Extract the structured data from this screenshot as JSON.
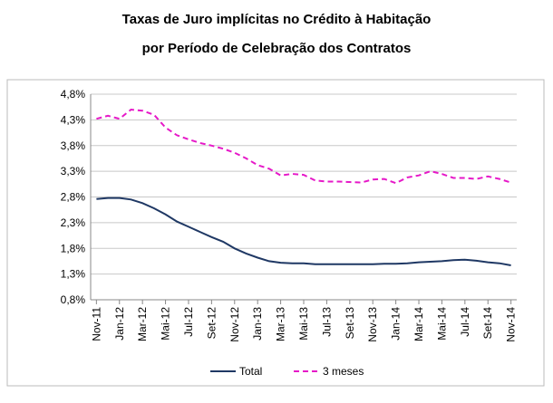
{
  "chart_data": {
    "type": "line",
    "title": "Taxas de Juro implícitas no Crédito à Habitação",
    "subtitle": "por Período de Celebração dos Contratos",
    "categories": [
      "Nov-11",
      null,
      "Jan-12",
      null,
      "Mar-12",
      null,
      "Mai-12",
      null,
      "Jul-12",
      null,
      "Set-12",
      null,
      "Nov-12",
      null,
      "Jan-13",
      null,
      "Mar-13",
      null,
      "Mai-13",
      null,
      "Jul-13",
      null,
      "Set-13",
      null,
      "Nov-13",
      null,
      "Jan-14",
      null,
      "Mar-14",
      null,
      "Mai-14",
      null,
      "Jul-14",
      null,
      "Set-14",
      null,
      "Nov-14"
    ],
    "series": [
      {
        "name": "Total",
        "color": "#1f3864",
        "dashed": false,
        "values": [
          2.76,
          2.78,
          2.78,
          2.75,
          2.68,
          2.58,
          2.46,
          2.32,
          2.22,
          2.12,
          2.02,
          1.93,
          1.8,
          1.7,
          1.62,
          1.55,
          1.52,
          1.51,
          1.51,
          1.49,
          1.49,
          1.49,
          1.49,
          1.49,
          1.49,
          1.5,
          1.5,
          1.51,
          1.53,
          1.54,
          1.55,
          1.57,
          1.58,
          1.56,
          1.53,
          1.51,
          1.47
        ]
      },
      {
        "name": "3 meses",
        "color": "#e619c8",
        "dashed": true,
        "values": [
          4.32,
          4.38,
          4.32,
          4.5,
          4.48,
          4.4,
          4.15,
          4.0,
          3.92,
          3.85,
          3.8,
          3.74,
          3.66,
          3.55,
          3.42,
          3.35,
          3.22,
          3.25,
          3.23,
          3.12,
          3.1,
          3.1,
          3.09,
          3.08,
          3.14,
          3.15,
          3.07,
          3.18,
          3.22,
          3.3,
          3.25,
          3.17,
          3.17,
          3.15,
          3.2,
          3.15,
          3.08
        ]
      }
    ],
    "ylim": [
      0.8,
      4.8
    ],
    "yticks": [
      {
        "value": 0.8,
        "label": "0,8%"
      },
      {
        "value": 1.3,
        "label": "1,3%"
      },
      {
        "value": 1.8,
        "label": "1,8%"
      },
      {
        "value": 2.3,
        "label": "2,3%"
      },
      {
        "value": 2.8,
        "label": "2,8%"
      },
      {
        "value": 3.3,
        "label": "3,3%"
      },
      {
        "value": 3.8,
        "label": "3,8%"
      },
      {
        "value": 4.3,
        "label": "4,3%"
      },
      {
        "value": 4.8,
        "label": "4,8%"
      }
    ],
    "grid": true,
    "legend": "bottom"
  }
}
